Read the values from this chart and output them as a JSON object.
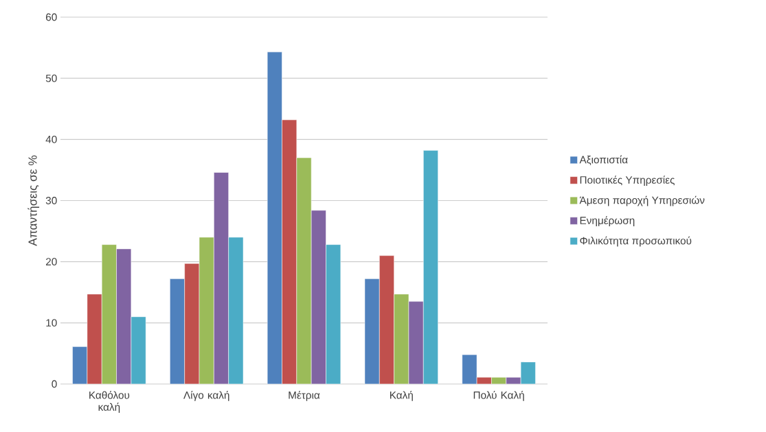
{
  "chart_data": {
    "type": "bar",
    "ylabel": "Απαντήσεις σε %",
    "categories": [
      "Καθόλου καλή",
      "Λίγο καλή",
      "Μέτρια",
      "Καλή",
      "Πολύ Καλή"
    ],
    "series": [
      {
        "name": "Αξιοπιστία",
        "color": "#4f81bd",
        "values": [
          6.1,
          17.2,
          54.3,
          17.2,
          4.8
        ]
      },
      {
        "name": "Ποιοτικές Υπηρεσίες",
        "color": "#c0504d",
        "values": [
          14.7,
          19.7,
          43.2,
          21.0,
          1.1
        ]
      },
      {
        "name": "Άμεση παροχή Υπηρεσιών",
        "color": "#9bbb59",
        "values": [
          22.8,
          24.0,
          37.0,
          14.7,
          1.1
        ]
      },
      {
        "name": "Ενημέρωση",
        "color": "#8064a2",
        "values": [
          22.1,
          34.6,
          28.4,
          13.5,
          1.1
        ]
      },
      {
        "name": "Φιλικότητα προσωπικού",
        "color": "#4bacc6",
        "values": [
          11.0,
          24.0,
          22.8,
          38.2,
          3.6
        ]
      }
    ],
    "ylim": [
      0,
      60
    ],
    "yticks": [
      0,
      10,
      20,
      30,
      40,
      50,
      60
    ],
    "grid": "y",
    "legend": "right"
  }
}
